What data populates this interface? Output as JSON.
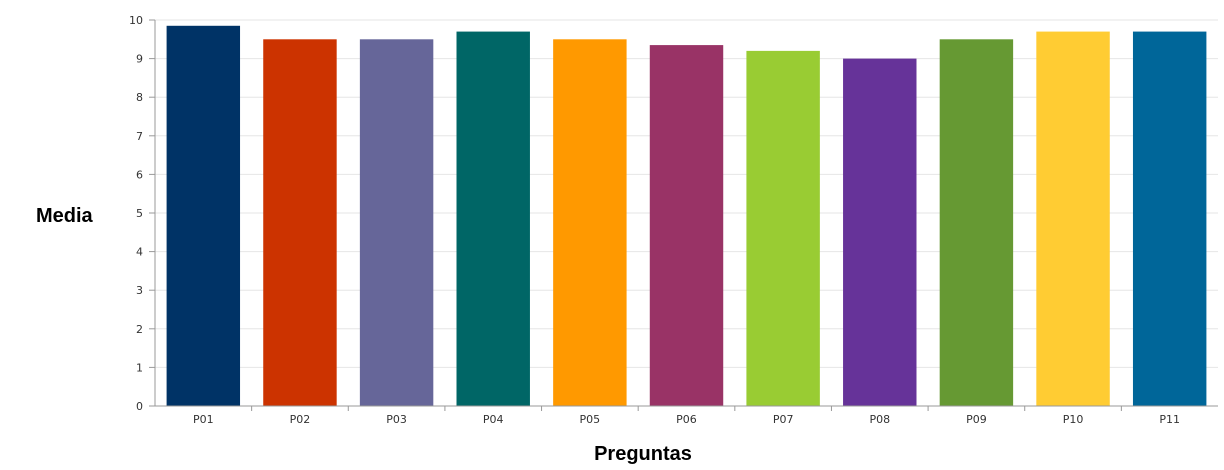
{
  "chart_data": {
    "type": "bar",
    "title": "",
    "xlabel": "Preguntas",
    "ylabel": "Media",
    "ylim": [
      0,
      10
    ],
    "yticks": [
      0,
      1,
      2,
      3,
      4,
      5,
      6,
      7,
      8,
      9,
      10
    ],
    "grid": true,
    "legend": "none",
    "categories": [
      "P01",
      "P02",
      "P03",
      "P04",
      "P05",
      "P06",
      "P07",
      "P08",
      "P09",
      "P10",
      "P11"
    ],
    "values": [
      9.85,
      9.5,
      9.5,
      9.7,
      9.5,
      9.35,
      9.2,
      9.0,
      9.5,
      9.7,
      9.7
    ],
    "colors": [
      "#003366",
      "#cc3300",
      "#666699",
      "#006666",
      "#ff9900",
      "#993366",
      "#99cc33",
      "#663399",
      "#669933",
      "#ffcc33",
      "#006699"
    ]
  }
}
